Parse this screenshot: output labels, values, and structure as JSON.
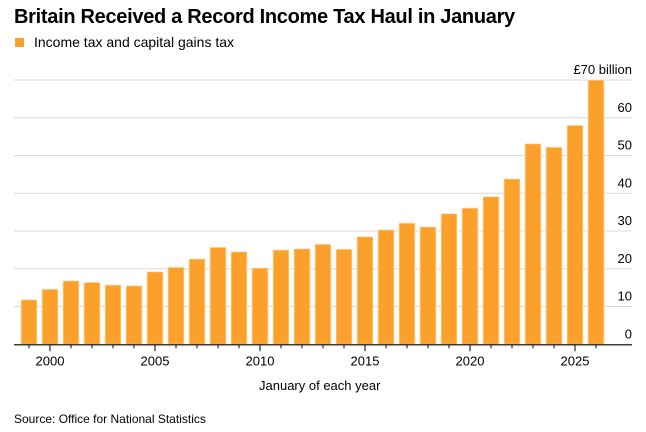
{
  "chart_data": {
    "type": "bar",
    "title": "Britain Received a Record Income Tax Haul in January",
    "legend": [
      {
        "label": "Income tax and capital gains tax",
        "color": "#FBA12B"
      }
    ],
    "legend_position": "top-left",
    "xlabel": "January of each year",
    "ylabel": "",
    "y_unit_label": "£70 billion",
    "ylim": [
      0,
      70
    ],
    "y_ticks": [
      0,
      10,
      20,
      30,
      40,
      50,
      60,
      70
    ],
    "y_tick_labels": [
      "0",
      "10",
      "20",
      "30",
      "40",
      "50",
      "60",
      "£70 billion"
    ],
    "y_axis_position": "right",
    "grid": true,
    "x_tick_labels": [
      "2000",
      "2005",
      "2010",
      "2015",
      "2020",
      "2025"
    ],
    "categories": [
      1999,
      2000,
      2001,
      2002,
      2003,
      2004,
      2005,
      2006,
      2007,
      2008,
      2009,
      2010,
      2011,
      2012,
      2013,
      2014,
      2015,
      2016,
      2017,
      2018,
      2019,
      2020,
      2021,
      2022,
      2023,
      2024,
      2025,
      2026
    ],
    "series": [
      {
        "name": "Income tax and capital gains tax",
        "color": "#FBA12B",
        "values": [
          11.8,
          14.6,
          16.8,
          16.4,
          15.7,
          15.5,
          19.2,
          20.4,
          22.6,
          25.7,
          24.5,
          20.2,
          25.0,
          25.3,
          26.5,
          25.2,
          28.5,
          30.3,
          32.1,
          31.1,
          34.6,
          36.1,
          39.1,
          43.8,
          53.1,
          52.2,
          58.0,
          70.0
        ]
      }
    ],
    "source": "Source: Office for National Statistics"
  }
}
